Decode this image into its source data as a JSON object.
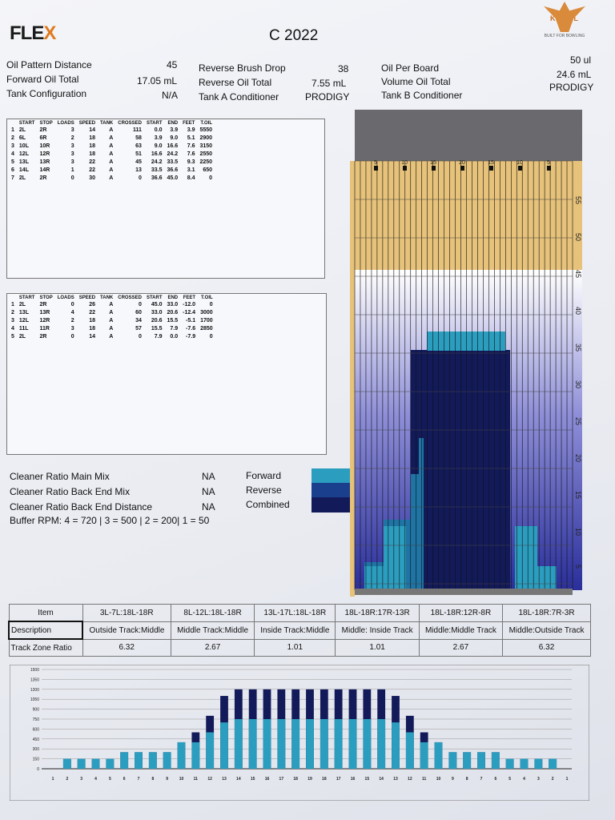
{
  "header": {
    "logo_main": "FLE",
    "logo_x": "X",
    "title": "C 2022",
    "kegel_name": "KEGEL",
    "kegel_tagline": "BUILT FOR BOWLING"
  },
  "summary": {
    "oil_pattern_distance": {
      "label": "Oil Pattern Distance",
      "value": "45"
    },
    "forward_oil_total": {
      "label": "Forward Oil Total",
      "value": "17.05 mL"
    },
    "tank_configuration": {
      "label": "Tank Configuration",
      "value": "N/A"
    },
    "reverse_brush_drop": {
      "label": "Reverse Brush Drop",
      "value": "38"
    },
    "reverse_oil_total": {
      "label": "Reverse Oil Total",
      "value": "7.55 mL"
    },
    "tank_a_conditioner": {
      "label": "Tank A Conditioner",
      "value": "PRODIGY"
    },
    "oil_per_board": {
      "label": "Oil Per Board",
      "value": "50 ul"
    },
    "volume_oil_total": {
      "label": "Volume Oil Total",
      "value": "24.6 mL"
    },
    "tank_b_conditioner": {
      "label": "Tank B Conditioner",
      "value": "PRODIGY"
    }
  },
  "forward_table": {
    "headers": [
      "",
      "START",
      "STOP",
      "LOADS",
      "SPEED",
      "TANK",
      "CROSSED",
      "START",
      "END",
      "FEET",
      "T.OIL"
    ],
    "rows": [
      [
        "1",
        "2L",
        "2R",
        "3",
        "14",
        "A",
        "111",
        "0.0",
        "3.9",
        "3.9",
        "5550"
      ],
      [
        "2",
        "6L",
        "6R",
        "2",
        "18",
        "A",
        "58",
        "3.9",
        "9.0",
        "5.1",
        "2900"
      ],
      [
        "3",
        "10L",
        "10R",
        "3",
        "18",
        "A",
        "63",
        "9.0",
        "16.6",
        "7.6",
        "3150"
      ],
      [
        "4",
        "12L",
        "12R",
        "3",
        "18",
        "A",
        "51",
        "16.6",
        "24.2",
        "7.6",
        "2550"
      ],
      [
        "5",
        "13L",
        "13R",
        "3",
        "22",
        "A",
        "45",
        "24.2",
        "33.5",
        "9.3",
        "2250"
      ],
      [
        "6",
        "14L",
        "14R",
        "1",
        "22",
        "A",
        "13",
        "33.5",
        "36.6",
        "3.1",
        "650"
      ],
      [
        "7",
        "2L",
        "2R",
        "0",
        "30",
        "A",
        "0",
        "36.6",
        "45.0",
        "8.4",
        "0"
      ]
    ]
  },
  "reverse_table": {
    "headers": [
      "",
      "START",
      "STOP",
      "LOADS",
      "SPEED",
      "TANK",
      "CROSSED",
      "START",
      "END",
      "FEET",
      "T.OIL"
    ],
    "rows": [
      [
        "1",
        "2L",
        "2R",
        "0",
        "26",
        "A",
        "0",
        "45.0",
        "33.0",
        "-12.0",
        "0"
      ],
      [
        "2",
        "13L",
        "13R",
        "4",
        "22",
        "A",
        "60",
        "33.0",
        "20.6",
        "-12.4",
        "3000"
      ],
      [
        "3",
        "12L",
        "12R",
        "2",
        "18",
        "A",
        "34",
        "20.6",
        "15.5",
        "-5.1",
        "1700"
      ],
      [
        "4",
        "11L",
        "11R",
        "3",
        "18",
        "A",
        "57",
        "15.5",
        "7.9",
        "-7.6",
        "2850"
      ],
      [
        "5",
        "2L",
        "2R",
        "0",
        "14",
        "A",
        "0",
        "7.9",
        "0.0",
        "-7.9",
        "0"
      ]
    ]
  },
  "cleaner": [
    {
      "label": "Cleaner Ratio Main Mix",
      "value": "NA"
    },
    {
      "label": "Cleaner Ratio Back End Mix",
      "value": "NA"
    },
    {
      "label": "Cleaner Ratio Back End Distance",
      "value": "NA"
    }
  ],
  "buffer_rpm": "Buffer RPM: 4 = 720 | 3 = 500 | 2 = 200| 1 = 50",
  "legend": [
    {
      "label": "Forward",
      "color": "#2b9dbf"
    },
    {
      "label": "Reverse",
      "color": "#1a3f8c"
    },
    {
      "label": "Combined",
      "color": "#131a5a"
    }
  ],
  "lane_graphic": {
    "foot_labels": [
      "55",
      "50",
      "45",
      "40",
      "35",
      "30",
      "25",
      "20",
      "15",
      "10",
      "5"
    ],
    "top_labels": [
      "5",
      "10",
      "15",
      "20",
      "15",
      "10",
      "5"
    ]
  },
  "zone_table": {
    "headers": [
      "Item",
      "3L-7L:18L-18R",
      "8L-12L:18L-18R",
      "13L-17L:18L-18R",
      "18L-18R:17R-13R",
      "18L-18R:12R-8R",
      "18L-18R:7R-3R"
    ],
    "description_label": "Description",
    "descriptions": [
      "Outside Track:Middle",
      "Middle Track:Middle",
      "Inside Track:Middle",
      "Middle: Inside Track",
      "Middle:Middle Track",
      "Middle:Outside Track"
    ],
    "ratio_label": "Track Zone Ratio",
    "ratios": [
      "6.32",
      "2.67",
      "1.01",
      "1.01",
      "2.67",
      "6.32"
    ]
  },
  "chart_data": {
    "type": "bar",
    "categories": [
      "1",
      "2",
      "3",
      "4",
      "5",
      "6",
      "7",
      "8",
      "9",
      "10",
      "11",
      "12",
      "13",
      "14",
      "15",
      "16",
      "17",
      "18",
      "19",
      "18",
      "17",
      "16",
      "15",
      "14",
      "13",
      "12",
      "11",
      "10",
      "9",
      "8",
      "7",
      "6",
      "5",
      "4",
      "3",
      "2",
      "1"
    ],
    "series": [
      {
        "name": "Forward",
        "color": "#2b9dbf",
        "values": [
          0,
          150,
          150,
          150,
          150,
          250,
          250,
          250,
          250,
          400,
          400,
          550,
          700,
          750,
          750,
          750,
          750,
          750,
          750,
          750,
          750,
          750,
          750,
          750,
          700,
          550,
          400,
          400,
          250,
          250,
          250,
          250,
          150,
          150,
          150,
          150,
          0
        ]
      },
      {
        "name": "Combined",
        "color": "#131a5a",
        "values": [
          0,
          150,
          150,
          150,
          150,
          250,
          250,
          250,
          250,
          400,
          550,
          800,
          1100,
          1200,
          1200,
          1200,
          1200,
          1200,
          1200,
          1200,
          1200,
          1200,
          1200,
          1200,
          1100,
          800,
          550,
          400,
          250,
          250,
          250,
          250,
          150,
          150,
          150,
          150,
          0
        ]
      }
    ],
    "yticks": [
      "1500",
      "1350",
      "1200",
      "1050",
      "900",
      "750",
      "600",
      "450",
      "300",
      "150",
      "0"
    ],
    "ylim": [
      0,
      1500
    ]
  }
}
